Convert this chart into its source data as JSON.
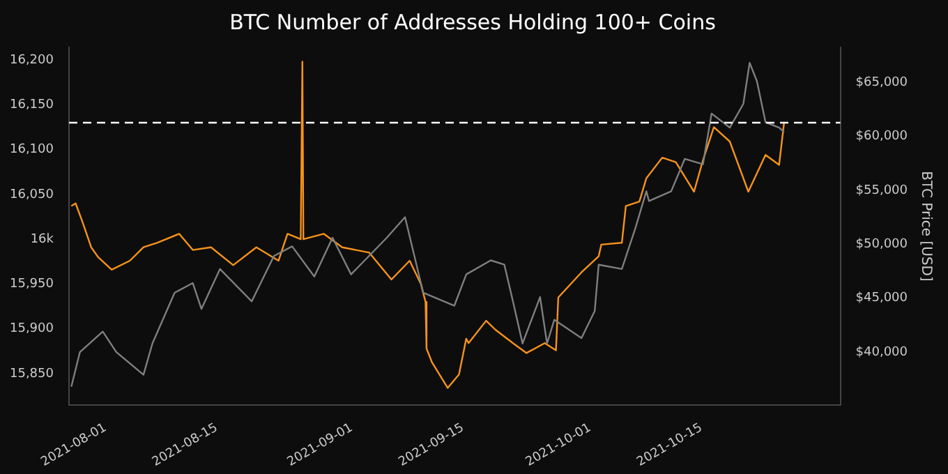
{
  "chart_data": {
    "type": "line",
    "title": "BTC Number of Addresses Holding 100+ Coins",
    "y2label": "BTC Price [USD]",
    "xlim": [
      "2021-07-27T10:00",
      "2021-11-01T12:00"
    ],
    "xticks": [
      "2021-08-01",
      "2021-08-15",
      "2021-09-01",
      "2021-09-15",
      "2021-10-01",
      "2021-10-15"
    ],
    "ylim": [
      15815,
      16214
    ],
    "yticks": [
      {
        "value": 15850,
        "label": "15,850"
      },
      {
        "value": 15900,
        "label": "15,900"
      },
      {
        "value": 15950,
        "label": "15,950"
      },
      {
        "value": 16000,
        "label": "16k"
      },
      {
        "value": 16050,
        "label": "16,050"
      },
      {
        "value": 16100,
        "label": "16,100"
      },
      {
        "value": 16150,
        "label": "16,150"
      },
      {
        "value": 16200,
        "label": "16,200"
      }
    ],
    "y2lim": [
      35100,
      68230
    ],
    "y2ticks": [
      {
        "value": 40000,
        "label": "$40,000"
      },
      {
        "value": 45000,
        "label": "$45,000"
      },
      {
        "value": 50000,
        "label": "$50,000"
      },
      {
        "value": 55000,
        "label": "$55,000"
      },
      {
        "value": 60000,
        "label": "$60,000"
      },
      {
        "value": 65000,
        "label": "$65,000"
      }
    ],
    "grid": false,
    "legend": false,
    "marker": "none",
    "line_style": "solid",
    "ref_lines": [
      {
        "axis": "y",
        "value": 16130,
        "color": "#ffffff",
        "line_style": "dashed"
      }
    ],
    "series": [
      {
        "color": "#7f7f7f",
        "axis": "y2",
        "x": [
          "2021-07-27T17:00",
          "2021-07-28T19:00",
          "2021-07-31T16:00",
          "2021-08-02T09:00",
          "2021-08-05T19:00",
          "2021-08-06T22:00",
          "2021-08-09T17:00",
          "2021-08-12T00:00",
          "2021-08-13T02:00",
          "2021-08-15T10:00",
          "2021-08-19T10:00",
          "2021-08-22T05:00",
          "2021-08-24T12:00",
          "2021-08-27T07:00",
          "2021-08-29T14:00",
          "2021-08-31T22:00",
          "2021-09-05T10:00",
          "2021-09-07T17:00",
          "2021-09-10T00:00",
          "2021-09-13T22:00",
          "2021-09-15T10:00",
          "2021-09-18T12:00",
          "2021-09-20T05:00",
          "2021-09-21T07:00",
          "2021-09-22T12:00",
          "2021-09-24T17:00",
          "2021-09-25T14:00",
          "2021-09-26T12:00",
          "2021-09-29T22:00",
          "2021-10-01T14:00",
          "2021-10-02T02:00",
          "2021-10-05T00:00",
          "2021-10-06T17:00",
          "2021-10-08T02:00",
          "2021-10-08T10:00",
          "2021-10-11T05:00",
          "2021-10-12T22:00",
          "2021-10-15T05:00",
          "2021-10-16T07:00",
          "2021-10-18T14:00",
          "2021-10-20T07:00",
          "2021-10-21T02:00",
          "2021-10-22T00:00",
          "2021-10-23T02:00",
          "2021-10-24T19:00",
          "2021-10-25T10:00"
        ],
        "values": [
          36800,
          40000,
          41900,
          40000,
          37900,
          40800,
          45500,
          46400,
          44000,
          47700,
          44700,
          48900,
          49800,
          47000,
          50600,
          47200,
          50600,
          52500,
          45500,
          44300,
          47200,
          48500,
          48100,
          44700,
          40800,
          45100,
          40800,
          43000,
          41300,
          43800,
          48100,
          47700,
          51500,
          54900,
          54000,
          54900,
          57900,
          57400,
          62100,
          60800,
          63000,
          66800,
          65100,
          61300,
          60800,
          60400
        ]
      },
      {
        "color": "#f7931a",
        "x": [
          "2021-07-27T17:00",
          "2021-07-28T06:00",
          "2021-07-29T02:00",
          "2021-07-30T05:00",
          "2021-07-31T02:00",
          "2021-08-01T19:00",
          "2021-08-04T02:00",
          "2021-08-05T19:00",
          "2021-08-07T12:00",
          "2021-08-10T07:00",
          "2021-08-12T00:00",
          "2021-08-14T07:00",
          "2021-08-17T02:00",
          "2021-08-20T00:00",
          "2021-08-22T19:00",
          "2021-08-23T22:00",
          "2021-08-25T14:00",
          "2021-08-25T19:00",
          "2021-08-25T22:00",
          "2021-08-28T12:00",
          "2021-08-30T19:00",
          "2021-09-03T05:00",
          "2021-09-06T00:00",
          "2021-09-08T07:00",
          "2021-09-09T17:00",
          "2021-09-10T07:00",
          "2021-09-10T10:00",
          "2021-09-11T02:00",
          "2021-09-13T02:00",
          "2021-09-14T12:00",
          "2021-09-15T10:00",
          "2021-09-15T17:00",
          "2021-09-17T22:00",
          "2021-09-19T02:00",
          "2021-09-21T07:00",
          "2021-09-23T00:00",
          "2021-09-25T07:00",
          "2021-09-26T17:00",
          "2021-09-27T00:00",
          "2021-09-29T22:00",
          "2021-10-02T02:00",
          "2021-10-02T10:00",
          "2021-10-05T00:00",
          "2021-10-05T12:00",
          "2021-10-07T05:00",
          "2021-10-08T02:00",
          "2021-10-10T02:00",
          "2021-10-11T19:00",
          "2021-10-14T02:00",
          "2021-10-15T05:00",
          "2021-10-16T14:00",
          "2021-10-18T14:00",
          "2021-10-20T22:00",
          "2021-10-23T02:00",
          "2021-10-24T19:00",
          "2021-10-25T10:00"
        ],
        "values": [
          16037,
          16040,
          16020,
          15991,
          15980,
          15966,
          15976,
          15991,
          15996,
          16006,
          15988,
          15991,
          15971,
          15991,
          15976,
          16006,
          16000,
          16198,
          16000,
          16006,
          15991,
          15985,
          15955,
          15976,
          15950,
          15930,
          15878,
          15863,
          15834,
          15849,
          15889,
          15884,
          15909,
          15899,
          15884,
          15873,
          15884,
          15876,
          15935,
          15963,
          15981,
          15994,
          15996,
          16037,
          16042,
          16068,
          16091,
          16086,
          16053,
          16088,
          16125,
          16109,
          16053,
          16094,
          16083,
          16130
        ]
      }
    ]
  }
}
